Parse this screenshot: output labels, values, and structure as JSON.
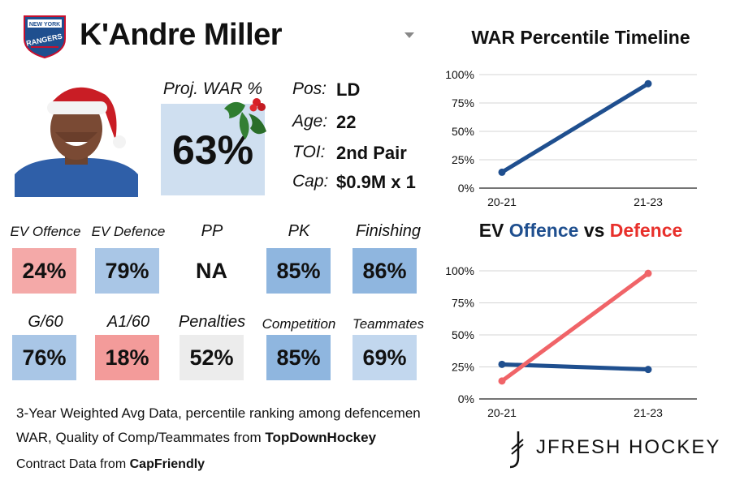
{
  "header": {
    "player_name": "K'Andre Miller",
    "team_logo_text_top": "NEW YORK",
    "team_logo_text_bottom": "RANGERS"
  },
  "projection": {
    "label": "Proj. WAR %",
    "value": "63%"
  },
  "info": [
    {
      "label": "Pos:",
      "value": "LD"
    },
    {
      "label": "Age:",
      "value": "22"
    },
    {
      "label": "TOI:",
      "value": "2nd Pair"
    },
    {
      "label": "Cap:",
      "value": "$0.9M x 1"
    }
  ],
  "tiles": [
    {
      "label": "EV Offence",
      "value": "24%",
      "color": "#f4a9a8"
    },
    {
      "label": "EV Defence",
      "value": "79%",
      "color": "#a9c6e6"
    },
    {
      "label": "PP",
      "value": "NA",
      "color": "#ffffff"
    },
    {
      "label": "PK",
      "value": "85%",
      "color": "#8fb6df"
    },
    {
      "label": "Finishing",
      "value": "86%",
      "color": "#8fb6df"
    },
    {
      "label": "G/60",
      "value": "76%",
      "color": "#a9c6e6"
    },
    {
      "label": "A1/60",
      "value": "18%",
      "color": "#f39b9a"
    },
    {
      "label": "Penalties",
      "value": "52%",
      "color": "#ececec"
    },
    {
      "label": "Competition",
      "value": "85%",
      "color": "#8fb6df"
    },
    {
      "label": "Teammates",
      "value": "69%",
      "color": "#c2d7ee"
    }
  ],
  "footer": {
    "line1": "3-Year Weighted Avg Data, percentile ranking among defencemen",
    "line2_prefix": "WAR, Quality of Comp/Teammates from ",
    "line2_source": "TopDownHockey",
    "line3_prefix": "Contract Data from ",
    "line3_source": "CapFriendly"
  },
  "brand": {
    "name": "JFRESH HOCKEY"
  },
  "colors": {
    "blue": "#1f4f8f",
    "red": "#f06468",
    "title_red": "#e8302b"
  },
  "chart_data": [
    {
      "type": "line",
      "title": "WAR Percentile Timeline",
      "x": [
        "20-21",
        "21-23"
      ],
      "ylim": [
        0,
        100
      ],
      "yticks": [
        "0%",
        "25%",
        "50%",
        "75%",
        "100%"
      ],
      "series": [
        {
          "values": [
            14,
            92
          ],
          "color": "#1f4f8f"
        }
      ]
    },
    {
      "type": "line",
      "title": "EV Offence vs Defence",
      "title_parts": {
        "offence": "Offence",
        "vs": "vs",
        "defence": "Defence",
        "ev": "EV"
      },
      "x": [
        "20-21",
        "21-23"
      ],
      "ylim": [
        0,
        100
      ],
      "yticks": [
        "0%",
        "25%",
        "50%",
        "75%",
        "100%"
      ],
      "series": [
        {
          "name": "Offence",
          "values": [
            27,
            23
          ],
          "color": "#1f4f8f"
        },
        {
          "name": "Defence",
          "values": [
            14,
            98
          ],
          "color": "#f06468"
        }
      ]
    }
  ]
}
